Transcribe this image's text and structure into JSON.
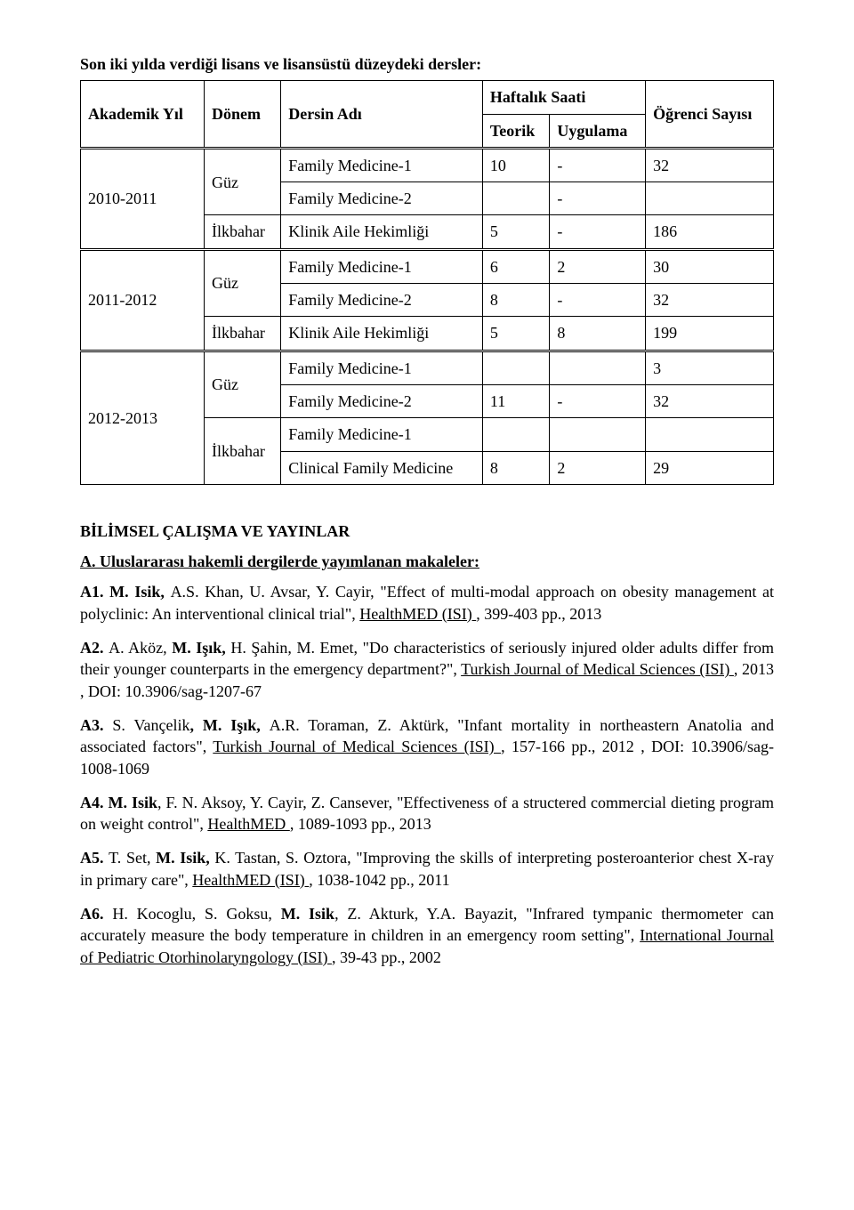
{
  "title_line": "Son iki yılda verdiği lisans ve lisansüstü düzeydeki dersler:",
  "header": {
    "col1": "Akademik Yıl",
    "col2": "Dönem",
    "col3": "Dersin Adı",
    "col4": "Haftalık Saati",
    "col5": "Öğrenci Sayısı",
    "sub1": "Teorik",
    "sub2": "Uygulama"
  },
  "rows": {
    "y1": "2010-2011",
    "y2": "2011-2012",
    "y3": "2012-2013",
    "guz": "Güz",
    "ilk": "İlkbahar",
    "fm1": "Family Medicine-1",
    "fm2": "Family Medicine-2",
    "kah": "Klinik Aile Hekimliği",
    "cfm": "Clinical Family Medicine",
    "r1": {
      "t": "10",
      "u": "-",
      "s": "32"
    },
    "r2": {
      "u": "-"
    },
    "r3": {
      "t": "5",
      "u": "-",
      "s": "186"
    },
    "r4": {
      "t": "6",
      "u": "2",
      "s": "30"
    },
    "r5": {
      "t": "8",
      "u": "-",
      "s": "32"
    },
    "r6": {
      "t": "5",
      "u": "8",
      "s": "199"
    },
    "r7": {
      "s": "3"
    },
    "r8": {
      "t": "11",
      "u": "-",
      "s": "32"
    },
    "r10": {
      "t": "8",
      "u": "2",
      "s": "29"
    }
  },
  "section_title": "BİLİMSEL ÇALIŞMA VE YAYINLAR",
  "sub_title": "A. Uluslararası hakemli dergilerde yayımlanan makaleler:",
  "p1": {
    "a": "A1. M. Isik, ",
    "b": "A.S. Khan, U. Avsar, Y. Cayir, \"Effect of multi-modal approach on obesity management at polyclinic: An interventional clinical trial\", ",
    "c": "HealthMED (ISI) ",
    "d": ", 399-403 pp., 2013"
  },
  "p2": {
    "a": "A2. ",
    "b": "A. Aköz, ",
    "c": "M. Işık, ",
    "d": "H. Şahin, M. Emet, \"Do characteristics of seriously injured older adults differ from their younger counterparts in the emergency department?\", ",
    "e": "Turkish Journal of Medical Sciences (ISI) ",
    "f": ", 2013 , DOI: 10.3906/sag-1207-67"
  },
  "p3": {
    "a": "A3. ",
    "b": "S. Vançelik",
    "c": ", M. Işık, ",
    "d": "A.R. Toraman, Z. Aktürk, \"Infant mortality in northeastern Anatolia and associated factors\", ",
    "e": "Turkish Journal of Medical Sciences (ISI) ",
    "f": ", 157-166 pp., 2012 , DOI: 10.3906/sag-1008-1069"
  },
  "p4": {
    "a": "A4. M. Isik",
    "b": ", F. N. Aksoy, Y. Cayir, Z. Cansever, \"Effectiveness of a structered commercial dieting program on weight control\", ",
    "c": "HealthMED ",
    "d": ", 1089-1093 pp., 2013"
  },
  "p5": {
    "a": "A5. ",
    "b": "T. Set, ",
    "c": "M. Isik, ",
    "d": "K. Tastan, S. Oztora, \"Improving the skills of interpreting posteroanterior chest X-ray in primary care\", ",
    "e": "HealthMED (ISI) ",
    "f": ", 1038-1042 pp., 2011"
  },
  "p6": {
    "a": "A6. ",
    "b": "H. Kocoglu, S. Goksu, ",
    "c": "M. Isik",
    "d": ", Z. Akturk, Y.A. Bayazit, \"Infrared tympanic thermometer can accurately measure the body temperature in children in an emergency room setting\", ",
    "e": "International Journal of Pediatric Otorhinolaryngology (ISI) ",
    "f": ", 39-43 pp., 2002"
  }
}
